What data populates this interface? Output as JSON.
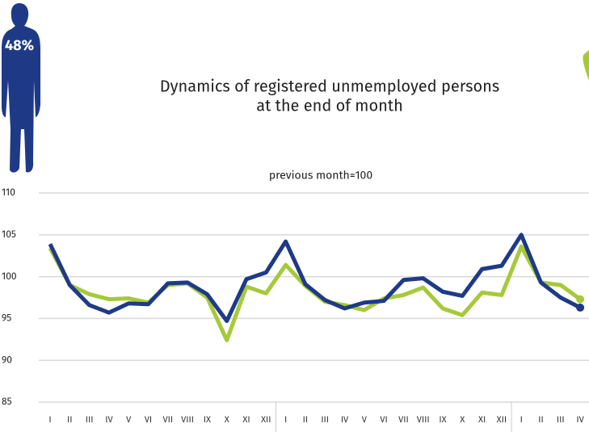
{
  "chart_data": {
    "type": "line",
    "badge": "48%",
    "title": [
      "Dynamics of registered unmemployed persons",
      "at the end of month"
    ],
    "subtitle": "previous month=100",
    "categories": [
      "I",
      "II",
      "III",
      "IV",
      "V",
      "VI",
      "VII",
      "VIII",
      "IX",
      "X",
      "XI",
      "XII",
      "I",
      "II",
      "III",
      "IV",
      "V",
      "VI",
      "VII",
      "VIII",
      "IX",
      "X",
      "XI",
      "XII",
      "I",
      "II",
      "III",
      "IV"
    ],
    "series": [
      {
        "color": "#a6c93a",
        "values": [
          103.4,
          99.0,
          97.9,
          97.3,
          97.4,
          96.9,
          99.0,
          99.2,
          97.5,
          92.4,
          98.8,
          98.0,
          101.4,
          98.9,
          97.0,
          96.6,
          96.0,
          97.4,
          97.8,
          98.7,
          96.2,
          95.4,
          98.1,
          97.8,
          103.6,
          99.3,
          99.0,
          97.3
        ]
      },
      {
        "color": "#1e3a87",
        "values": [
          103.9,
          99.0,
          96.6,
          95.7,
          96.8,
          96.7,
          99.2,
          99.3,
          97.9,
          94.7,
          99.7,
          100.5,
          104.2,
          99.1,
          97.2,
          96.2,
          96.9,
          97.1,
          99.6,
          99.8,
          98.2,
          97.7,
          100.9,
          101.3,
          105.0,
          99.3,
          97.5,
          96.3
        ]
      }
    ],
    "ylim": [
      85,
      110
    ],
    "yticks": [
      85,
      90,
      95,
      100,
      105,
      110
    ],
    "grid": true
  }
}
